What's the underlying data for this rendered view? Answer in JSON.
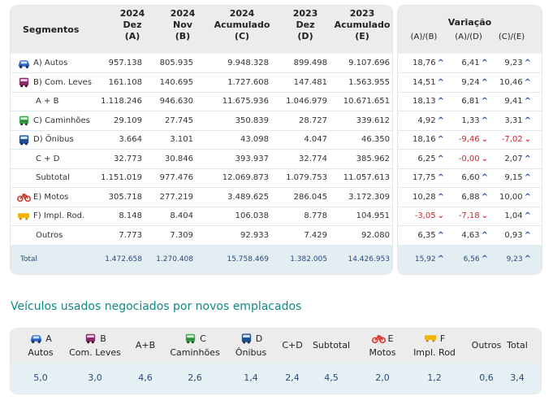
{
  "main_table": {
    "headers": {
      "segments": "Segmentos",
      "cols": [
        {
          "year": "2024",
          "period": "Dez",
          "key": "(A)"
        },
        {
          "year": "2024",
          "period": "Nov",
          "key": "(B)"
        },
        {
          "year": "2024",
          "period": "Acumulado",
          "key": "(C)"
        },
        {
          "year": "2023",
          "period": "Dez",
          "key": "(D)"
        },
        {
          "year": "2023",
          "period": "Acumulado",
          "key": "(E)"
        }
      ]
    },
    "rows": [
      {
        "label": "A) Autos",
        "icon": "car-icon",
        "values": [
          "957.138",
          "805.935",
          "9.948.328",
          "899.498",
          "9.107.696"
        ]
      },
      {
        "label": "B) Com. Leves",
        "icon": "van-icon",
        "values": [
          "161.108",
          "140.695",
          "1.727.608",
          "147.481",
          "1.563.955"
        ]
      },
      {
        "label": "A + B",
        "icon": "",
        "values": [
          "1.118.246",
          "946.630",
          "11.675.936",
          "1.046.979",
          "10.671.651"
        ]
      },
      {
        "label": "C) Caminhões",
        "icon": "truck-icon",
        "values": [
          "29.109",
          "27.745",
          "350.839",
          "28.727",
          "339.612"
        ]
      },
      {
        "label": "D) Ônibus",
        "icon": "bus-icon",
        "values": [
          "3.664",
          "3.101",
          "43.098",
          "4.047",
          "46.350"
        ]
      },
      {
        "label": "C + D",
        "icon": "",
        "values": [
          "32.773",
          "30.846",
          "393.937",
          "32.774",
          "385.962"
        ]
      },
      {
        "label": "Subtotal",
        "icon": "",
        "values": [
          "1.151.019",
          "977.476",
          "12.069.873",
          "1.079.753",
          "11.057.613"
        ]
      },
      {
        "label": "E) Motos",
        "icon": "motorcycle-icon",
        "values": [
          "305.718",
          "277.219",
          "3.489.625",
          "286.045",
          "3.172.309"
        ]
      },
      {
        "label": "F) Impl. Rod.",
        "icon": "trailer-icon",
        "values": [
          "8.148",
          "8.404",
          "106.038",
          "8.778",
          "104.951"
        ]
      },
      {
        "label": "Outros",
        "icon": "",
        "values": [
          "7.773",
          "7.309",
          "92.933",
          "7.429",
          "92.080"
        ]
      }
    ],
    "total": {
      "label": "Total",
      "values": [
        "1.472.658",
        "1.270.408",
        "15.758.469",
        "1.382.005",
        "14.426.953"
      ]
    }
  },
  "variation_table": {
    "title": "Variação",
    "cols": [
      "(A)/(B)",
      "(A)/(D)",
      "(C)/(E)"
    ],
    "rows": [
      [
        {
          "v": "18,76",
          "d": "up"
        },
        {
          "v": "6,41",
          "d": "up"
        },
        {
          "v": "9,23",
          "d": "up"
        }
      ],
      [
        {
          "v": "14,51",
          "d": "up"
        },
        {
          "v": "9,24",
          "d": "up"
        },
        {
          "v": "10,46",
          "d": "up"
        }
      ],
      [
        {
          "v": "18,13",
          "d": "up"
        },
        {
          "v": "6,81",
          "d": "up"
        },
        {
          "v": "9,41",
          "d": "up"
        }
      ],
      [
        {
          "v": "4,92",
          "d": "up"
        },
        {
          "v": "1,33",
          "d": "up"
        },
        {
          "v": "3,31",
          "d": "up"
        }
      ],
      [
        {
          "v": "18,16",
          "d": "up"
        },
        {
          "v": "-9,46",
          "d": "down"
        },
        {
          "v": "-7,02",
          "d": "down"
        }
      ],
      [
        {
          "v": "6,25",
          "d": "up"
        },
        {
          "v": "-0,00",
          "d": "down"
        },
        {
          "v": "2,07",
          "d": "up"
        }
      ],
      [
        {
          "v": "17,75",
          "d": "up"
        },
        {
          "v": "6,60",
          "d": "up"
        },
        {
          "v": "9,15",
          "d": "up"
        }
      ],
      [
        {
          "v": "10,28",
          "d": "up"
        },
        {
          "v": "6,88",
          "d": "up"
        },
        {
          "v": "10,00",
          "d": "up"
        }
      ],
      [
        {
          "v": "-3,05",
          "d": "down"
        },
        {
          "v": "-7,18",
          "d": "down"
        },
        {
          "v": "1,04",
          "d": "up"
        }
      ],
      [
        {
          "v": "6,35",
          "d": "up"
        },
        {
          "v": "4,63",
          "d": "up"
        },
        {
          "v": "0,93",
          "d": "up"
        }
      ]
    ],
    "total": [
      {
        "v": "15,92",
        "d": "up"
      },
      {
        "v": "6,56",
        "d": "up"
      },
      {
        "v": "9,23",
        "d": "up"
      }
    ]
  },
  "used_section": {
    "title": "Veículos usados negociados por novos emplacados",
    "columns": [
      {
        "letter": "A",
        "name": "Autos",
        "icon": "car-icon",
        "value": "5,0"
      },
      {
        "letter": "B",
        "name": "Com. Leves",
        "icon": "van-icon",
        "value": "3,0"
      },
      {
        "letter": "",
        "name": "A+B",
        "icon": "",
        "value": "4,6"
      },
      {
        "letter": "C",
        "name": "Caminhões",
        "icon": "truck-icon",
        "value": "2,6"
      },
      {
        "letter": "D",
        "name": "Ônibus",
        "icon": "bus-icon",
        "value": "1,4"
      },
      {
        "letter": "",
        "name": "C+D",
        "icon": "",
        "value": "2,4"
      },
      {
        "letter": "",
        "name": "Subtotal",
        "icon": "",
        "value": "4,5"
      },
      {
        "letter": "E",
        "name": "Motos",
        "icon": "motorcycle-icon",
        "value": "2,0"
      },
      {
        "letter": "F",
        "name": "Impl. Rod",
        "icon": "trailer-icon",
        "value": "1,2"
      },
      {
        "letter": "",
        "name": "Outros",
        "icon": "",
        "value": "0,6"
      },
      {
        "letter": "",
        "name": "Total",
        "icon": "",
        "value": "3,4"
      }
    ]
  },
  "colors": {
    "up_arrow": "#1d4fa3",
    "down_arrow": "#d81f2a",
    "title_teal": "#0f8a84",
    "car": "#2f66c4",
    "van": "#8a2a6b",
    "truck": "#3aa84a",
    "bus": "#1f4f8f",
    "moto": "#d6342a",
    "trailer": "#f2b600"
  }
}
